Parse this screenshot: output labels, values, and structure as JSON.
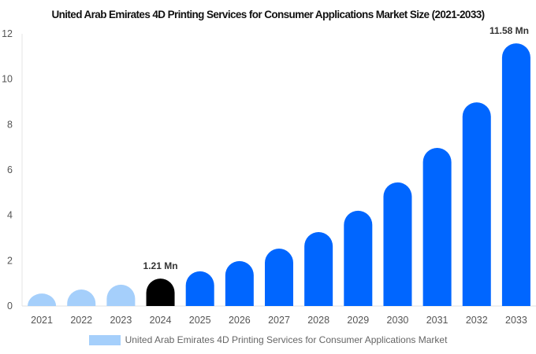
{
  "chart_data": {
    "type": "bar",
    "title": "United Arab Emirates 4D Printing Services for Consumer Applications Market Size (2021-2033)",
    "categories": [
      "2021",
      "2022",
      "2023",
      "2024",
      "2025",
      "2026",
      "2027",
      "2028",
      "2029",
      "2030",
      "2031",
      "2032",
      "2033"
    ],
    "series": [
      {
        "name": "United Arab Emirates 4D Printing Services for Consumer Applications Market",
        "values": [
          0.55,
          0.73,
          0.94,
          1.21,
          1.53,
          1.98,
          2.53,
          3.26,
          4.2,
          5.45,
          6.97,
          8.98,
          11.58
        ]
      }
    ],
    "data_labels": {
      "2024": "1.21 Mn",
      "2033": "11.58 Mn"
    },
    "ylim": [
      0,
      12
    ],
    "yticks": [
      0,
      2,
      4,
      6,
      8,
      10,
      12
    ],
    "xlabel": "",
    "ylabel": "",
    "grid": false,
    "legend": "bottom",
    "colors": {
      "historical": "#a5cffb",
      "base_year": "#000000",
      "forecast": "#0066ff"
    }
  }
}
